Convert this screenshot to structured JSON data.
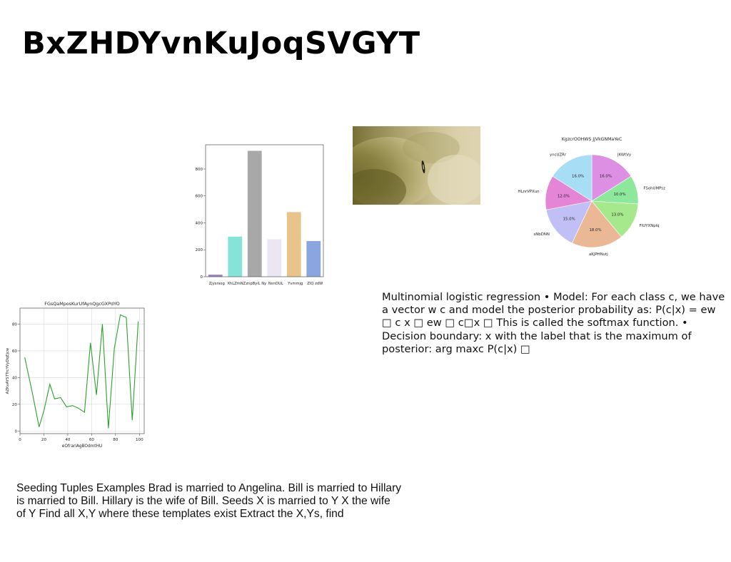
{
  "slide": {
    "title": "BxZHDYvnKuJoqSVGYT",
    "mlr_text": "Multinomial logistic regression • Model: For each class c, we have a vector w c and model the posterior probability as: P(c|x) = ew □ c x □ ew □ c□x □ This is called the softmax function. • Decision boundary: x with the label that is the maximum of posterior: arg maxc P(c|x) □",
    "seed_text": "Seeding Tuples Examples Brad is married to Angelina. Bill is married to Hillary is married to Bill. Hillary is the wife of Bill. Seeds X is married to Y X the wife of Y Find all X,Y where these templates exist Extract the X,Ys, find"
  },
  "chart_data": [
    {
      "type": "bar",
      "title": "",
      "xlabel": "",
      "ylabel": "",
      "categories": [
        "Zjysrsog",
        "XhLZmNZ",
        "znpByiL Ny",
        "NsnOUL",
        "Yvmmjg",
        "ZIQ zdW"
      ],
      "values": [
        15,
        298,
        935,
        278,
        480,
        265
      ],
      "colors": [
        "#9b7fc9",
        "#86e3d8",
        "#a8a8a8",
        "#ece6f2",
        "#e8c48a",
        "#8aa6e0"
      ],
      "ylim": [
        0,
        980
      ],
      "yticks": [
        0,
        200,
        400,
        600,
        800
      ],
      "grid": false
    },
    {
      "type": "pie",
      "title": "KgzcrOOHWS JjVkGNMaYeC",
      "labels": [
        "JKWtVy",
        "FSohUMPsz",
        "FIUYXNplq",
        "aKJPHNutj",
        "sNbDNN",
        "HLnrVPXun",
        "yncUZRr"
      ],
      "values": [
        16.0,
        10.0,
        13.0,
        18.0,
        15.0,
        12.0,
        16.0
      ],
      "pct_labels": [
        "16.0%",
        "10.0%",
        "13.0%",
        "18.0%",
        "15.0%",
        "12.0%",
        "16.0%"
      ],
      "colors": [
        "#dd8fe3",
        "#8ee89c",
        "#a6e88c",
        "#ebb896",
        "#c0c0f6",
        "#e485d6",
        "#a8ddf6"
      ]
    },
    {
      "type": "line",
      "title": "FGsQaMposKurUfAynQgcGXPdYO",
      "xlabel": "eOfrariAgBOdmtHU",
      "ylabel": "AZKvAYSTTrcYVyDqEjcw",
      "x": [
        4,
        10,
        16,
        20,
        25,
        29,
        34,
        39,
        44,
        49,
        54,
        59,
        64,
        69,
        74,
        79,
        84,
        89,
        94,
        99
      ],
      "y": [
        55,
        30,
        3,
        15,
        35,
        24,
        25,
        18,
        19,
        17,
        14,
        66,
        27,
        80,
        2,
        62,
        87,
        85,
        8,
        82
      ],
      "series": [
        {
          "name": "",
          "color": "#2ca02c"
        }
      ],
      "xlim": [
        0,
        104
      ],
      "ylim": [
        -2,
        92
      ],
      "xticks": [
        0,
        20,
        40,
        60,
        80,
        100
      ],
      "yticks": [
        0,
        20,
        40,
        60,
        80
      ],
      "grid": true
    }
  ]
}
